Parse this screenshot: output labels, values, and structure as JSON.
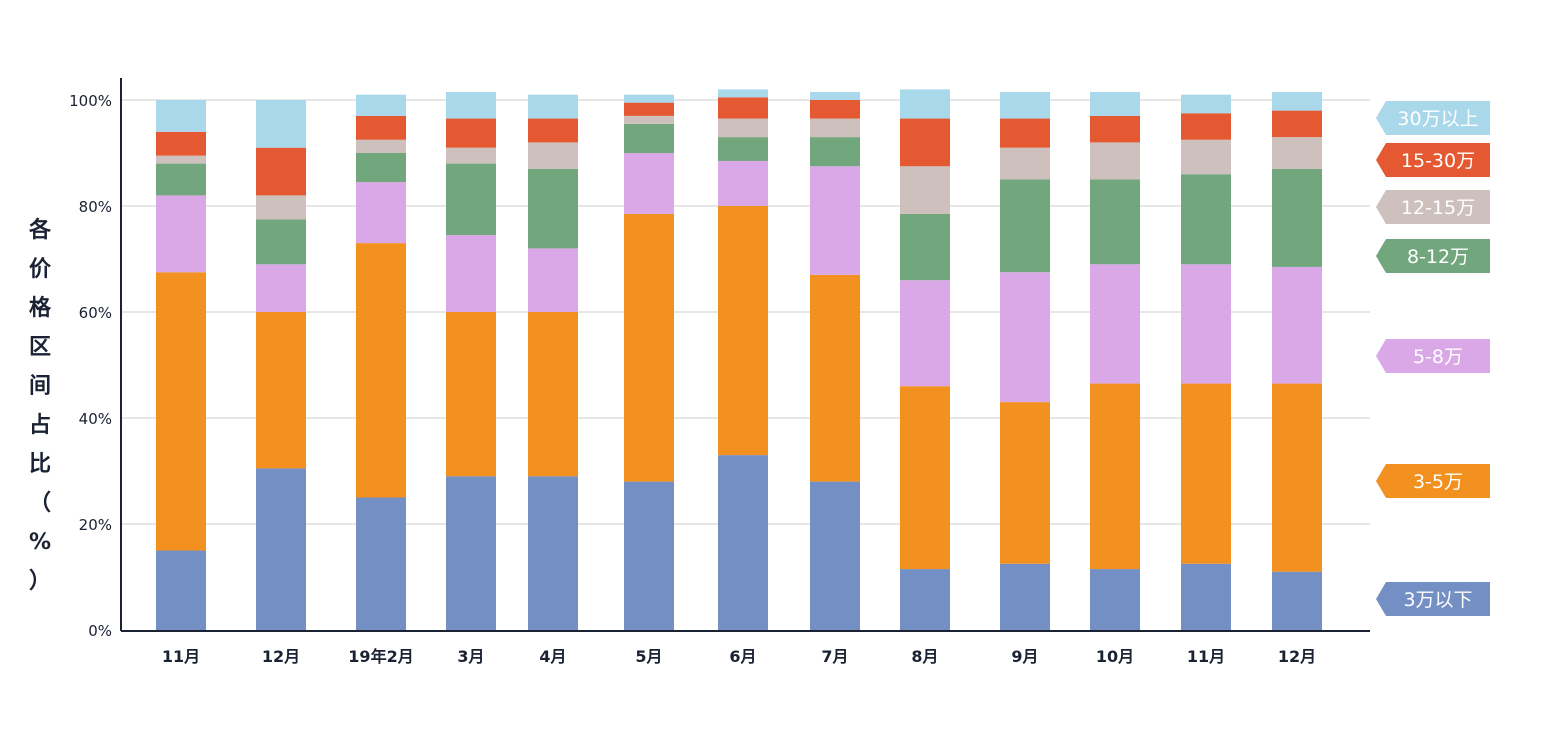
{
  "chart_data": {
    "type": "bar",
    "stacked": true,
    "ylabel": "各价格区间占比（%）",
    "ylim": [
      0,
      100
    ],
    "yticks": [
      "0%",
      "20%",
      "40%",
      "60%",
      "80%",
      "100%"
    ],
    "categories": [
      "11月",
      "12月",
      "19年2月",
      "3月",
      "4月",
      "5月",
      "6月",
      "7月",
      "8月",
      "9月",
      "10月",
      "11月",
      "12月"
    ],
    "series": [
      {
        "name": "3万以下",
        "color": "#748fc4",
        "values": [
          15.0,
          30.5,
          25.0,
          29.0,
          29.0,
          28.0,
          33.0,
          28.0,
          11.5,
          12.5,
          11.5,
          12.5,
          11.0
        ]
      },
      {
        "name": "3-5万",
        "color": "#f29120",
        "values": [
          52.5,
          29.5,
          48.0,
          31.0,
          31.0,
          50.5,
          47.0,
          39.0,
          34.5,
          30.5,
          35.0,
          34.0,
          35.5
        ]
      },
      {
        "name": "5-8万",
        "color": "#dba8e7",
        "values": [
          14.5,
          9.0,
          11.5,
          14.5,
          12.0,
          11.5,
          8.5,
          20.5,
          20.0,
          24.5,
          22.5,
          22.5,
          22.0
        ]
      },
      {
        "name": "8-12万",
        "color": "#72a77e",
        "values": [
          6.0,
          8.5,
          5.5,
          13.5,
          15.0,
          5.5,
          4.5,
          5.5,
          12.5,
          17.5,
          16.0,
          17.0,
          18.5
        ]
      },
      {
        "name": "12-15万",
        "color": "#cdc0bd",
        "values": [
          1.5,
          4.5,
          2.5,
          3.0,
          5.0,
          1.5,
          3.5,
          3.5,
          9.0,
          6.0,
          7.0,
          6.5,
          6.0
        ]
      },
      {
        "name": "15-30万",
        "color": "#e45931",
        "values": [
          4.5,
          9.0,
          4.5,
          5.5,
          4.5,
          2.5,
          4.0,
          3.5,
          9.0,
          5.5,
          5.0,
          5.0,
          5.0
        ]
      },
      {
        "name": "30万以上",
        "color": "#a8d8ea",
        "values": [
          6.0,
          9.0,
          4.0,
          5.0,
          4.5,
          1.5,
          1.5,
          1.5,
          5.5,
          5.0,
          4.5,
          3.5,
          3.5
        ]
      }
    ],
    "legend_placement": "right"
  }
}
